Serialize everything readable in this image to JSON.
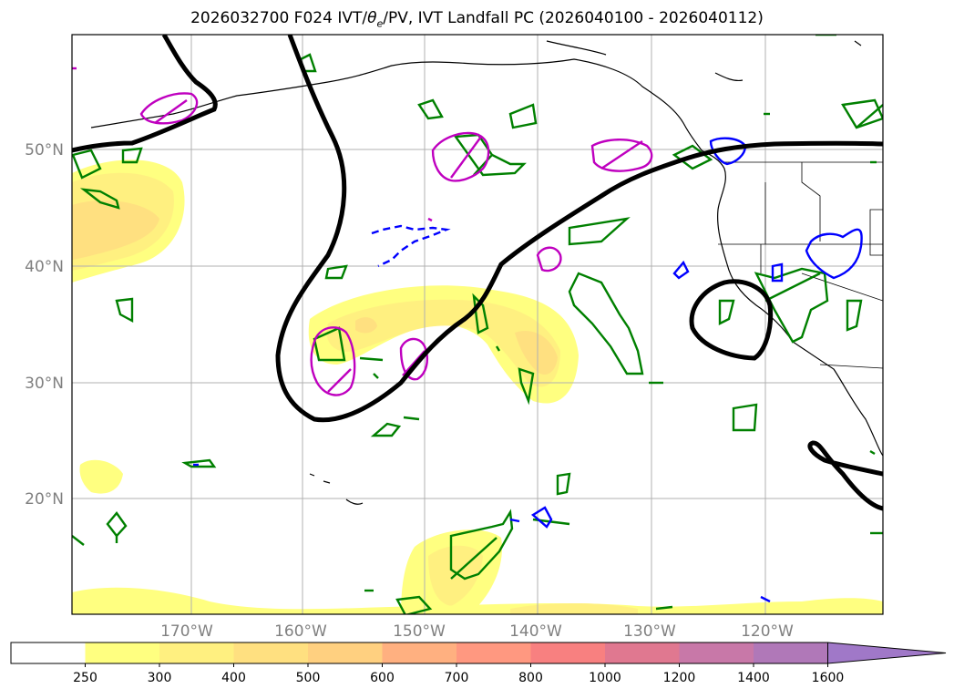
{
  "title": {
    "run": "2026032700 F024",
    "fields": "IVT/",
    "theta": "θ",
    "theta_sub": "e",
    "rest": "/PV, IVT Landfall PC (2026040100 - 2026040112)"
  },
  "map": {
    "lat_labels": [
      "50°N",
      "40°N",
      "30°N",
      "20°N"
    ],
    "lon_labels": [
      "170°W",
      "160°W",
      "150°W",
      "140°W",
      "130°W",
      "120°W"
    ],
    "contour_colors": {
      "pc_black": "#000000",
      "theta_green": "#008000",
      "pv_magenta": "#bf00bf",
      "pv_blue": "#0000ff"
    }
  },
  "colorbar": {
    "ticks": [
      "250",
      "300",
      "400",
      "500",
      "600",
      "700",
      "800",
      "1000",
      "1200",
      "1400",
      "1600"
    ],
    "colors": [
      "#ffffff",
      "#ffff80",
      "#fff080",
      "#ffe080",
      "#ffd080",
      "#ffb080",
      "#ff9880",
      "#f88080",
      "#e07890",
      "#c878a8",
      "#b078b8",
      "#a078c8"
    ]
  }
}
